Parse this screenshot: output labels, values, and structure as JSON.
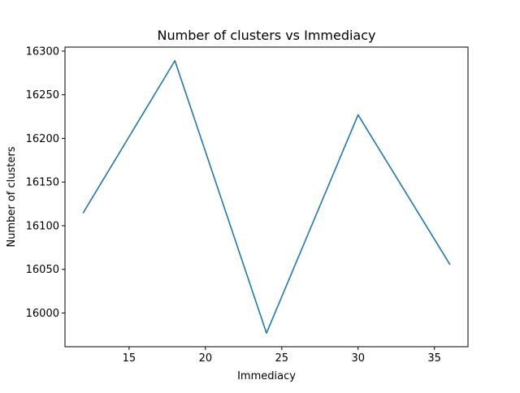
{
  "chart_data": {
    "type": "line",
    "title": "Number of clusters vs Immediacy",
    "xlabel": "Immediacy",
    "ylabel": "Number of clusters",
    "x": [
      12,
      18,
      24,
      30,
      36
    ],
    "series": [
      {
        "values": [
          16115,
          16289,
          15977,
          16227,
          16056
        ]
      }
    ],
    "xlim": [
      10.8,
      37.2
    ],
    "ylim": [
      15961.4,
      16304.6
    ],
    "xticks": [
      15,
      20,
      25,
      30,
      35
    ],
    "yticks": [
      16000,
      16050,
      16100,
      16150,
      16200,
      16250,
      16300
    ],
    "xtick_labels": [
      "15",
      "20",
      "25",
      "30",
      "35"
    ],
    "ytick_labels": [
      "16000",
      "16050",
      "16100",
      "16150",
      "16200",
      "16250",
      "16300"
    ],
    "grid": false,
    "line_color": "#1f77b4"
  }
}
